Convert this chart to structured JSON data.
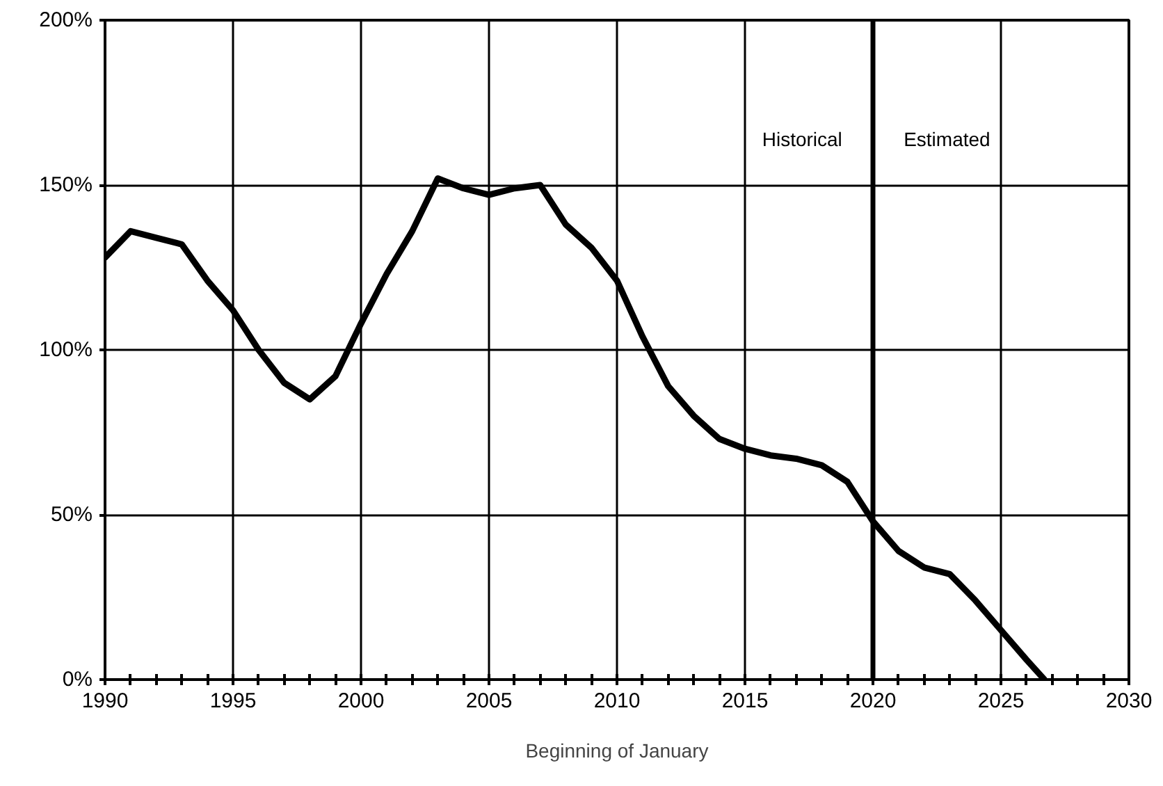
{
  "chart_data": {
    "type": "line",
    "xlabel": "Beginning of January",
    "x": [
      1990,
      1991,
      1992,
      1993,
      1994,
      1995,
      1996,
      1997,
      1998,
      1999,
      2000,
      2001,
      2002,
      2003,
      2004,
      2005,
      2006,
      2007,
      2008,
      2009,
      2010,
      2011,
      2012,
      2013,
      2014,
      2015,
      2016,
      2017,
      2018,
      2019,
      2020,
      2021,
      2022,
      2023,
      2024,
      2025,
      2026,
      2026.7
    ],
    "series": [
      {
        "color": "#000000",
        "values": [
          128,
          136,
          134,
          132,
          121,
          112,
          100,
          90,
          85,
          92,
          108,
          123,
          136,
          152,
          149,
          147,
          149,
          150,
          138,
          131,
          121,
          104,
          89,
          80,
          73,
          70,
          68,
          67,
          65,
          60,
          48,
          39,
          34,
          32,
          24,
          15,
          6,
          0
        ]
      }
    ],
    "xlim": [
      1990,
      2030
    ],
    "xticks": [
      1990,
      {
        "value": 1991,
        "label": null
      },
      {
        "value": 1992,
        "label": null
      },
      {
        "value": 1993,
        "label": null
      },
      {
        "value": 1994,
        "label": null
      },
      1995,
      {
        "value": 1996,
        "label": null
      },
      {
        "value": 1997,
        "label": null
      },
      {
        "value": 1998,
        "label": null
      },
      {
        "value": 1999,
        "label": null
      },
      2000,
      {
        "value": 2001,
        "label": null
      },
      {
        "value": 2002,
        "label": null
      },
      {
        "value": 2003,
        "label": null
      },
      {
        "value": 2004,
        "label": null
      },
      2005,
      {
        "value": 2006,
        "label": null
      },
      {
        "value": 2007,
        "label": null
      },
      {
        "value": 2008,
        "label": null
      },
      {
        "value": 2009,
        "label": null
      },
      2010,
      {
        "value": 2011,
        "label": null
      },
      {
        "value": 2012,
        "label": null
      },
      {
        "value": 2013,
        "label": null
      },
      {
        "value": 2014,
        "label": null
      },
      2015,
      {
        "value": 2016,
        "label": null
      },
      {
        "value": 2017,
        "label": null
      },
      {
        "value": 2018,
        "label": null
      },
      {
        "value": 2019,
        "label": null
      },
      2020,
      {
        "value": 2021,
        "label": null
      },
      {
        "value": 2022,
        "label": null
      },
      {
        "value": 2023,
        "label": null
      },
      {
        "value": 2024,
        "label": null
      },
      2025,
      {
        "value": 2026,
        "label": null
      },
      {
        "value": 2027,
        "label": null
      },
      {
        "value": 2028,
        "label": null
      },
      {
        "value": 2029,
        "label": null
      },
      2030
    ],
    "ylim": [
      0,
      200
    ],
    "yticks": [
      {
        "value": 0,
        "label": "0%"
      },
      {
        "value": 50,
        "label": "50%"
      },
      {
        "value": 100,
        "label": "100%"
      },
      {
        "value": 150,
        "label": "150%"
      },
      {
        "value": 200,
        "label": "200%"
      }
    ],
    "ref_lines": [
      {
        "axis": "x",
        "value": 2020,
        "color": "#000000"
      }
    ],
    "annotations": [
      "Historical",
      "Estimated"
    ],
    "grid": true,
    "line_style": "solid"
  }
}
